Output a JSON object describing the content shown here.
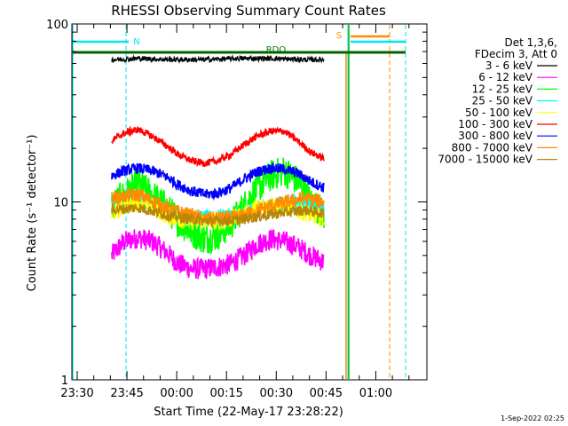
{
  "chart_data": {
    "type": "line",
    "title": "RHESSI Observing Summary Count Rates",
    "xlabel": "Start Time (22-May-17 23:28:22)",
    "ylabel": "Count Rate (s⁻¹ detector⁻¹)",
    "y_scale": "log",
    "ylim": [
      1,
      100
    ],
    "x_unit": "minutes after 23:28:22",
    "xlim": [
      0,
      107
    ],
    "x_ticks": [
      {
        "label": "23:30",
        "t": 1.6
      },
      {
        "label": "23:45",
        "t": 16.6
      },
      {
        "label": "00:00",
        "t": 31.6
      },
      {
        "label": "00:15",
        "t": 46.6
      },
      {
        "label": "00:30",
        "t": 61.6
      },
      {
        "label": "00:45",
        "t": 76.6
      },
      {
        "label": "01:00",
        "t": 91.6
      }
    ],
    "y_ticks": [
      {
        "label": "1",
        "value": 1
      },
      {
        "label": "10",
        "value": 10
      },
      {
        "label": "100",
        "value": 100
      }
    ],
    "legend_header": [
      "Det 1,3,6,",
      "FDecim 3, Att 0"
    ],
    "legend_placement": "right",
    "series": [
      {
        "name": "3 - 6 keV",
        "color": "#000000",
        "x": [
          12,
          20,
          30,
          40,
          50,
          60,
          70,
          76
        ],
        "values": [
          63,
          64,
          63,
          63,
          64,
          64,
          63,
          63
        ]
      },
      {
        "name": "6 - 12 keV",
        "color": "#ff00ff",
        "x": [
          12,
          16,
          20,
          24,
          28,
          32,
          36,
          40,
          44,
          48,
          52,
          56,
          60,
          64,
          68,
          72,
          76
        ],
        "values": [
          5.0,
          6.0,
          6.3,
          6.0,
          5.3,
          4.5,
          4.2,
          4.2,
          4.3,
          4.5,
          5.0,
          5.8,
          6.2,
          6.0,
          5.6,
          5.0,
          4.6
        ]
      },
      {
        "name": "12 - 25 keV",
        "color": "#00ff00",
        "x": [
          12,
          16,
          20,
          24,
          28,
          32,
          36,
          40,
          44,
          48,
          52,
          56,
          60,
          64,
          68,
          72,
          76
        ],
        "values": [
          9.5,
          11,
          12.5,
          11,
          9.5,
          7.8,
          6.8,
          6.2,
          6.5,
          7.5,
          9.5,
          12,
          14,
          15,
          13,
          10,
          8.5
        ]
      },
      {
        "name": "25 - 50 keV",
        "color": "#00ffff",
        "x": [
          12,
          20,
          30,
          40,
          50,
          60,
          70,
          76
        ],
        "values": [
          9.3,
          10.5,
          8.5,
          8.0,
          8.3,
          9.5,
          10,
          9.0
        ]
      },
      {
        "name": "50 - 100 keV",
        "color": "#ffff00",
        "x": [
          12,
          16,
          20,
          24,
          28,
          32,
          36,
          40,
          44,
          48,
          52,
          56,
          60,
          64,
          68,
          72,
          76
        ],
        "values": [
          8.5,
          9.5,
          10,
          9.5,
          8.5,
          8.0,
          7.8,
          7.8,
          7.8,
          8.0,
          8.5,
          9.3,
          9.8,
          9.5,
          9.0,
          8.5,
          8.0
        ]
      },
      {
        "name": "100 - 300 keV",
        "color": "#ff0000",
        "x": [
          12,
          16,
          20,
          24,
          28,
          32,
          36,
          40,
          44,
          48,
          52,
          56,
          60,
          64,
          68,
          72,
          76
        ],
        "values": [
          22,
          24.5,
          25.5,
          23.5,
          21,
          18.5,
          17,
          16.5,
          17,
          18.5,
          21,
          23.5,
          25,
          25,
          22,
          19,
          17.5
        ]
      },
      {
        "name": "300 - 800 keV",
        "color": "#0000ff",
        "x": [
          12,
          16,
          20,
          24,
          28,
          32,
          36,
          40,
          44,
          48,
          52,
          56,
          60,
          64,
          68,
          72,
          76
        ],
        "values": [
          14,
          15,
          15.5,
          15,
          14,
          12.5,
          11.5,
          11,
          11.2,
          12,
          13.5,
          14.8,
          15.5,
          15.3,
          14.5,
          13,
          12
        ]
      },
      {
        "name": "800 - 7000 keV",
        "color": "#ff8c00",
        "x": [
          12,
          20,
          30,
          40,
          50,
          60,
          70,
          76
        ],
        "values": [
          10.5,
          11,
          9.0,
          8.0,
          8.2,
          9.5,
          10.5,
          10
        ]
      },
      {
        "name": "7000 - 15000 keV",
        "color": "#b8860b",
        "x": [
          12,
          20,
          30,
          40,
          50,
          60,
          70,
          76
        ],
        "values": [
          9.0,
          9.3,
          8.3,
          7.8,
          7.9,
          8.5,
          9.0,
          8.6
        ]
      }
    ],
    "annotations": [
      {
        "text": "N",
        "color": "#00e5ee"
      },
      {
        "text": "S",
        "color": "#ff8c00"
      },
      {
        "text": "RDO",
        "color": "#008000"
      }
    ],
    "grid": false
  },
  "timestamp": "1-Sep-2022 02:25"
}
